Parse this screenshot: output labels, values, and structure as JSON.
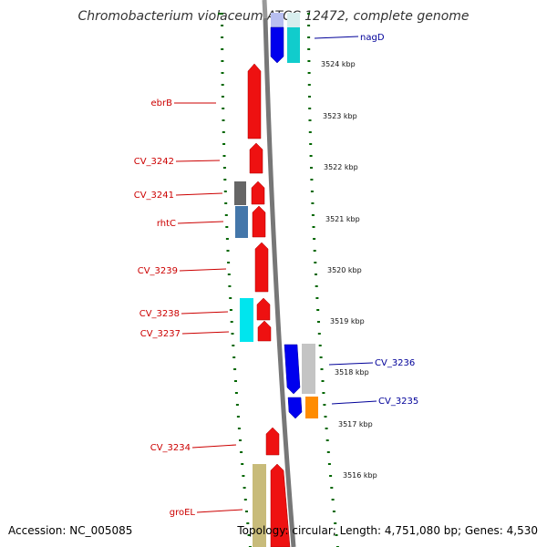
{
  "title": "Chromobacterium violaceum ATCC 12472, complete genome",
  "footer": {
    "accession": "Accession: NC_005085",
    "summary": "Topology: circular; Length: 4,751,080 bp; Genes: 4,530"
  },
  "colors": {
    "reverse_label": "#cc0000",
    "forward_label": "#000099",
    "tick": "#006600",
    "backbone": "#777777"
  },
  "ticks": [
    {
      "label": "3524 kbp"
    },
    {
      "label": "3523 kbp"
    },
    {
      "label": "3522 kbp"
    },
    {
      "label": "3521 kbp"
    },
    {
      "label": "3520 kbp"
    },
    {
      "label": "3519 kbp"
    },
    {
      "label": "3518 kbp"
    },
    {
      "label": "3517 kbp"
    },
    {
      "label": "3516 kbp"
    }
  ],
  "reverse_labels": [
    {
      "text": "ebrB"
    },
    {
      "text": "CV_3242"
    },
    {
      "text": "CV_3241"
    },
    {
      "text": "rhtC"
    },
    {
      "text": "CV_3239"
    },
    {
      "text": "CV_3238"
    },
    {
      "text": "CV_3237"
    },
    {
      "text": "CV_3234"
    },
    {
      "text": "groEL"
    }
  ],
  "forward_labels": [
    {
      "text": "nagD"
    },
    {
      "text": "CV_3236"
    },
    {
      "text": "CV_3235"
    }
  ]
}
